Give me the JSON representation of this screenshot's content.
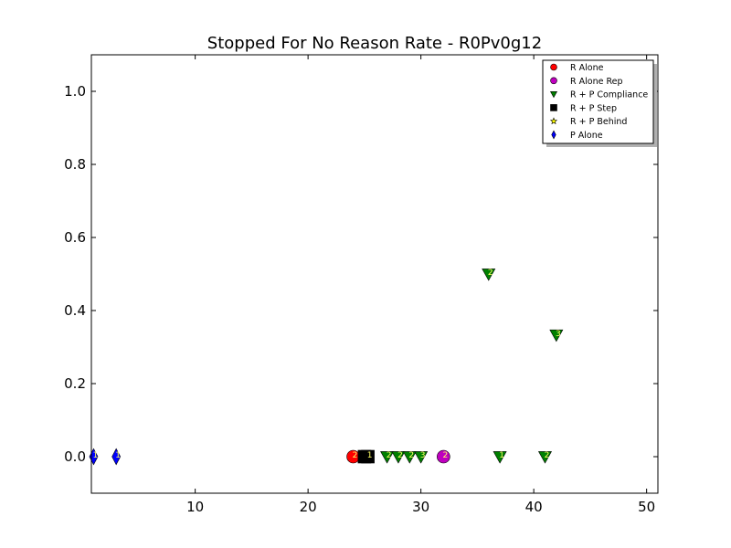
{
  "chart_data": {
    "type": "scatter",
    "title": "Stopped For No Reason Rate - R0Pv0g12",
    "xlabel": "",
    "ylabel": "",
    "xlim": [
      0.8,
      51
    ],
    "ylim": [
      -0.1,
      1.1
    ],
    "xticks": [
      10,
      20,
      30,
      40,
      50
    ],
    "yticks": [
      0.0,
      0.2,
      0.4,
      0.6,
      0.8,
      1.0
    ],
    "xtick_labels": [
      "10",
      "20",
      "30",
      "40",
      "50"
    ],
    "ytick_labels": [
      "0.0",
      "0.2",
      "0.4",
      "0.6",
      "0.8",
      "1.0"
    ],
    "grid": false,
    "legend_position": "top-right",
    "series": [
      {
        "name": "R Alone",
        "marker": "circle",
        "color": "#ff0000",
        "points": [
          {
            "x": 24,
            "y": 0.0,
            "label": "2"
          }
        ]
      },
      {
        "name": "R Alone Rep",
        "marker": "circle",
        "color": "#bf00bf",
        "points": [
          {
            "x": 32,
            "y": 0.0,
            "label": "2"
          }
        ]
      },
      {
        "name": "R + P Compliance",
        "marker": "triangle-down",
        "color": "#008000",
        "points": [
          {
            "x": 27,
            "y": 0.0,
            "label": "2"
          },
          {
            "x": 28,
            "y": 0.0,
            "label": "2"
          },
          {
            "x": 29,
            "y": 0.0,
            "label": "2"
          },
          {
            "x": 30,
            "y": 0.0,
            "label": "3"
          },
          {
            "x": 36,
            "y": 0.5,
            "label": "2"
          },
          {
            "x": 37,
            "y": 0.0,
            "label": "1"
          },
          {
            "x": 41,
            "y": 0.0,
            "label": "2"
          },
          {
            "x": 42,
            "y": 0.333,
            "label": "3"
          }
        ]
      },
      {
        "name": "R + P Step",
        "marker": "square",
        "color": "#000000",
        "points": [
          {
            "x": 25,
            "y": 0.0,
            "label": "1"
          },
          {
            "x": 25.3,
            "y": 0.0,
            "label": "1"
          }
        ]
      },
      {
        "name": "R + P Behind",
        "marker": "star",
        "color": "#ffff00",
        "points": []
      },
      {
        "name": "P Alone",
        "marker": "thin-diamond",
        "color": "#0000ff",
        "points": [
          {
            "x": 1,
            "y": 0.0,
            "label": "1"
          },
          {
            "x": 3,
            "y": 0.0,
            "label": "1"
          }
        ]
      }
    ]
  }
}
